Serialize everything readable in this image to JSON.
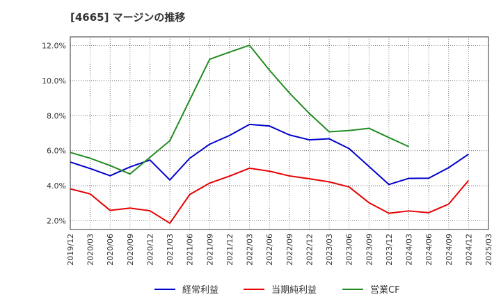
{
  "chart_data": {
    "type": "line",
    "title": "[4665]  マージンの推移",
    "xlabel": "",
    "ylabel": "",
    "x": [
      "2019/12",
      "2020/03",
      "2020/06",
      "2020/09",
      "2020/12",
      "2021/03",
      "2021/06",
      "2021/09",
      "2021/12",
      "2022/03",
      "2022/06",
      "2022/09",
      "2022/12",
      "2023/03",
      "2023/06",
      "2023/09",
      "2023/12",
      "2024/03",
      "2024/06",
      "2024/09",
      "2024/12",
      "2025/03"
    ],
    "y_ticks": [
      "2.0%",
      "4.0%",
      "6.0%",
      "8.0%",
      "10.0%",
      "12.0%"
    ],
    "ylim": [
      1.5,
      12.5
    ],
    "grid": true,
    "legend_position": "bottom",
    "series": [
      {
        "name": "経常利益",
        "color": "#0000cc",
        "values": [
          5.35,
          4.98,
          4.57,
          5.07,
          5.47,
          4.33,
          5.57,
          6.37,
          6.87,
          7.5,
          7.41,
          6.9,
          6.62,
          6.68,
          6.12,
          5.1,
          4.07,
          4.42,
          4.43,
          5.03,
          5.8,
          null
        ]
      },
      {
        "name": "当期純利益",
        "color": "#e60000",
        "values": [
          3.82,
          3.53,
          2.59,
          2.72,
          2.57,
          1.86,
          3.5,
          4.15,
          4.55,
          5.0,
          4.83,
          4.56,
          4.4,
          4.22,
          3.93,
          3.03,
          2.43,
          2.56,
          2.46,
          2.95,
          4.3,
          null
        ]
      },
      {
        "name": "営業CF",
        "color": "#228b22",
        "values": [
          5.9,
          5.57,
          5.15,
          4.67,
          5.62,
          6.57,
          8.9,
          11.22,
          11.63,
          12.02,
          10.6,
          9.3,
          8.13,
          7.08,
          7.15,
          7.28,
          6.75,
          6.23,
          null,
          null,
          null,
          null
        ]
      }
    ]
  }
}
